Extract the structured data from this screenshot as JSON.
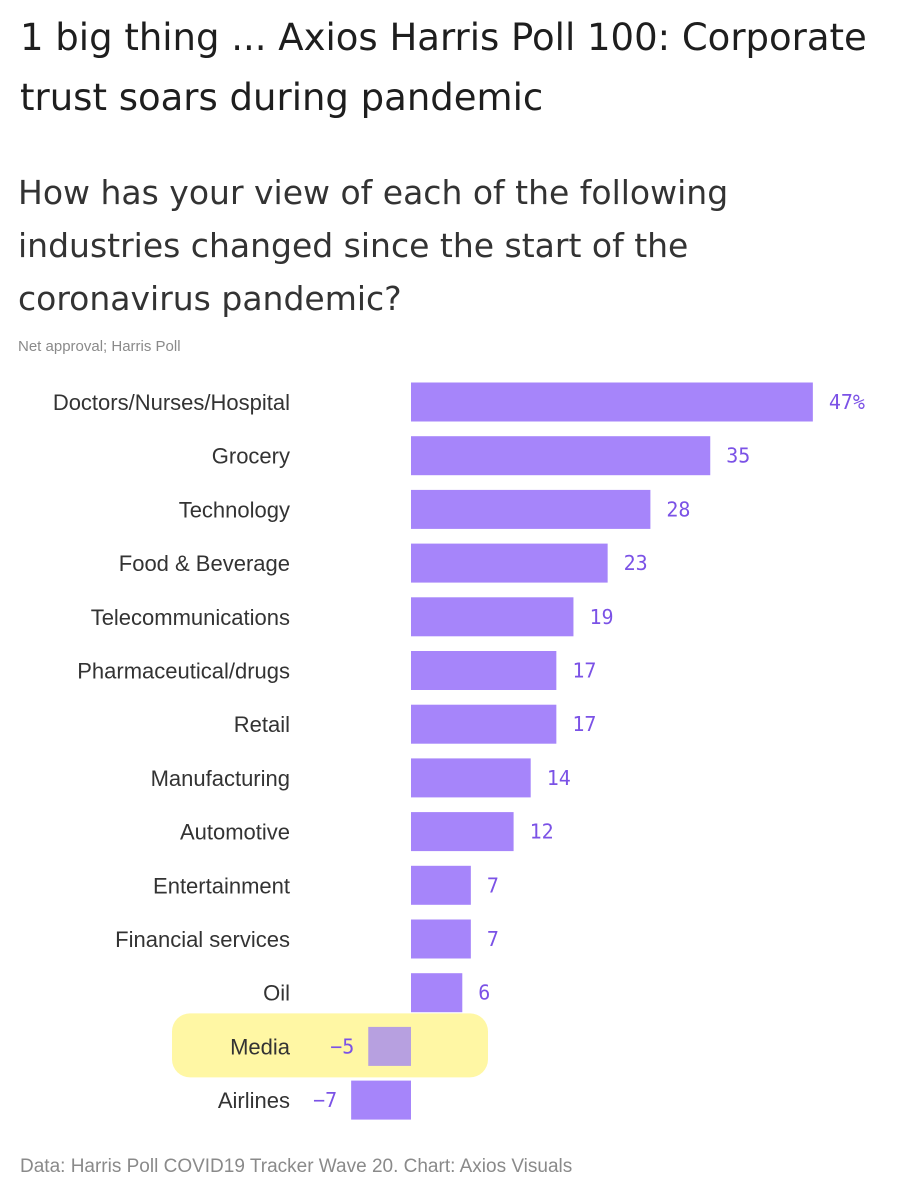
{
  "headline": "1 big thing ... Axios Harris Poll 100: Corporate trust soars during pandemic",
  "colors": {
    "bar": "#a685fa",
    "value_text": "#7b52e6",
    "highlight": "#fff15a"
  },
  "chart_data": {
    "type": "bar",
    "orientation": "horizontal",
    "title": "How has your view of each of the following industries changed since the start of the coronavirus pandemic?",
    "subtitle": "Net approval; Harris Poll",
    "source": "Data: Harris Poll COVID19 Tracker Wave 20. Chart: Axios Visuals",
    "categories": [
      "Doctors/Nurses/Hospital",
      "Grocery",
      "Technology",
      "Food & Beverage",
      "Telecommunications",
      "Pharmaceutical/drugs",
      "Retail",
      "Manufacturing",
      "Automotive",
      "Entertainment",
      "Financial services",
      "Oil",
      "Media",
      "Airlines"
    ],
    "values": [
      47,
      35,
      28,
      23,
      19,
      17,
      17,
      14,
      12,
      7,
      7,
      6,
      -5,
      -7
    ],
    "value_labels": [
      "47%",
      "35",
      "28",
      "23",
      "19",
      "17",
      "17",
      "14",
      "12",
      "7",
      "7",
      "6",
      "−5",
      "−7"
    ],
    "highlighted_category": "Media",
    "grid": false,
    "legend": "none"
  }
}
